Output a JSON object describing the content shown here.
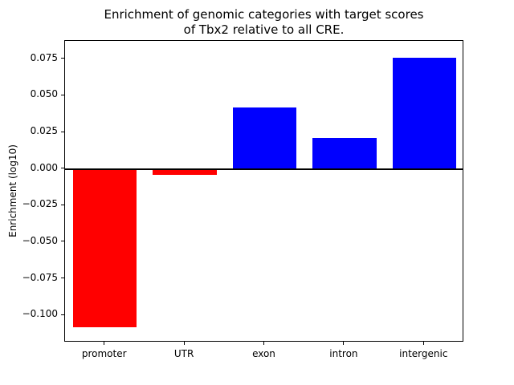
{
  "figure": {
    "background": "#ffffff"
  },
  "chart_data": {
    "type": "bar",
    "title_line1": "Enrichment of genomic categories with target scores",
    "title_line2": "of Tbx2 relative to all CRE.",
    "ylabel": "Enrichment (log10)",
    "xlabel": "",
    "categories": [
      "promoter",
      "UTR",
      "exon",
      "intron",
      "intergenic"
    ],
    "values": [
      -0.108,
      -0.004,
      0.042,
      0.021,
      0.076
    ],
    "positive_color": "#0000ff",
    "negative_color": "#ff0000",
    "ylim": [
      -0.1185,
      0.0875
    ],
    "yticks": {
      "values": [
        0.075,
        0.05,
        0.025,
        0.0,
        -0.025,
        -0.05,
        -0.075,
        -0.1
      ],
      "labels": [
        "0.075",
        "0.050",
        "0.025",
        "0.000",
        "−0.025",
        "−0.050",
        "−0.075",
        "−0.100"
      ]
    },
    "zero_line": true,
    "grid": false,
    "legend": null
  }
}
